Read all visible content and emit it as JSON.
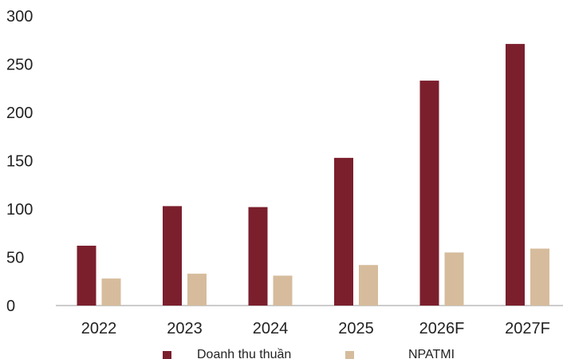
{
  "chart_data": {
    "type": "bar",
    "categories": [
      "2022",
      "2023",
      "2024",
      "2025",
      "2026F",
      "2027F"
    ],
    "series": [
      {
        "name": "Doanh thu thuần",
        "values": [
          62,
          103,
          102,
          153,
          233,
          271
        ],
        "color": "#7B1F2D"
      },
      {
        "name": "NPATMI",
        "values": [
          28,
          33,
          31,
          42,
          55,
          59
        ],
        "color": "#D6BC9C"
      }
    ],
    "ylim": [
      0,
      300
    ],
    "yticks": [
      0,
      50,
      100,
      150,
      200,
      250,
      300
    ],
    "grid": false,
    "legend": "bottom"
  }
}
